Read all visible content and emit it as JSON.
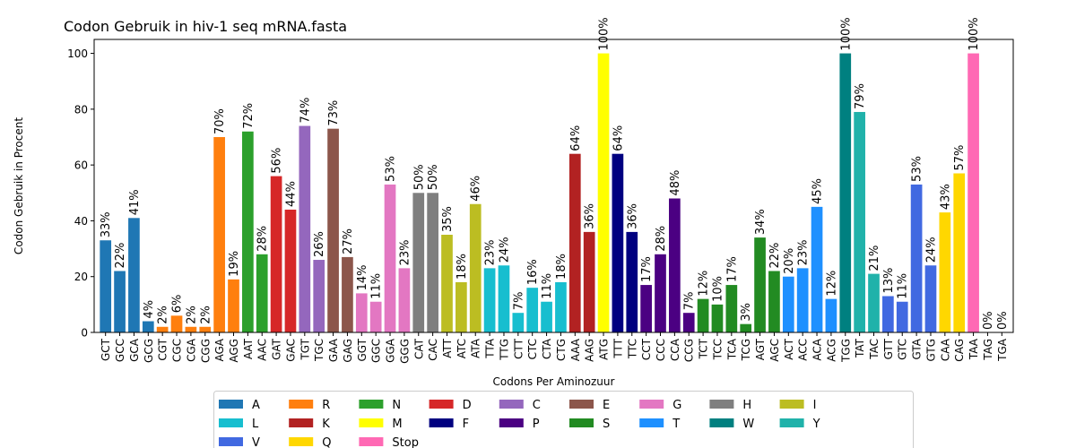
{
  "chart_data": {
    "type": "bar",
    "title": "Codon Gebruik in hiv-1 seq mRNA.fasta",
    "xlabel": "Codons Per Aminozuur",
    "ylabel": "Codon Gebruik in Procent",
    "ylim": [
      0,
      105
    ],
    "yticks": [
      0,
      20,
      40,
      60,
      80,
      100
    ],
    "grid": false,
    "legend_position": "bottom-center",
    "categories": [
      "GCT",
      "GCC",
      "GCA",
      "GCG",
      "CGT",
      "CGC",
      "CGA",
      "CGG",
      "AGA",
      "AGG",
      "AAT",
      "AAC",
      "GAT",
      "GAC",
      "TGT",
      "TGC",
      "GAA",
      "GAG",
      "GGT",
      "GGC",
      "GGA",
      "GGG",
      "CAT",
      "CAC",
      "ATT",
      "ATC",
      "ATA",
      "TTA",
      "TTG",
      "CTT",
      "CTC",
      "CTA",
      "CTG",
      "AAA",
      "AAG",
      "ATG",
      "TTT",
      "TTC",
      "CCT",
      "CCC",
      "CCA",
      "CCG",
      "TCT",
      "TCC",
      "TCA",
      "TCG",
      "AGT",
      "AGC",
      "ACT",
      "ACC",
      "ACA",
      "ACG",
      "TGG",
      "TAT",
      "TAC",
      "GTT",
      "GTC",
      "GTA",
      "GTG",
      "CAA",
      "CAG",
      "TAA",
      "TAG",
      "TGA"
    ],
    "values": [
      33,
      22,
      41,
      4,
      2,
      6,
      2,
      2,
      70,
      19,
      72,
      28,
      56,
      44,
      74,
      26,
      73,
      27,
      14,
      11,
      53,
      23,
      50,
      50,
      35,
      18,
      46,
      23,
      24,
      7,
      16,
      11,
      18,
      64,
      36,
      100,
      64,
      36,
      17,
      28,
      48,
      7,
      12,
      10,
      17,
      3,
      34,
      22,
      20,
      23,
      45,
      12,
      100,
      79,
      21,
      13,
      11,
      53,
      24,
      43,
      57,
      100,
      0,
      0
    ],
    "labels": [
      "33%",
      "22%",
      "41%",
      "4%",
      "2%",
      "6%",
      "2%",
      "2%",
      "70%",
      "19%",
      "72%",
      "28%",
      "56%",
      "44%",
      "74%",
      "26%",
      "73%",
      "27%",
      "14%",
      "11%",
      "53%",
      "23%",
      "50%",
      "50%",
      "35%",
      "18%",
      "46%",
      "23%",
      "24%",
      "7%",
      "16%",
      "11%",
      "18%",
      "64%",
      "36%",
      "100%",
      "64%",
      "36%",
      "17%",
      "28%",
      "48%",
      "7%",
      "12%",
      "10%",
      "17%",
      "3%",
      "34%",
      "22%",
      "20%",
      "23%",
      "45%",
      "12%",
      "100%",
      "79%",
      "21%",
      "13%",
      "11%",
      "53%",
      "24%",
      "43%",
      "57%",
      "100%",
      "0%",
      "0%"
    ],
    "amino_acid_of_codon": [
      "A",
      "A",
      "A",
      "A",
      "R",
      "R",
      "R",
      "R",
      "R",
      "R",
      "N",
      "N",
      "D",
      "D",
      "C",
      "C",
      "E",
      "E",
      "G",
      "G",
      "G",
      "G",
      "H",
      "H",
      "I",
      "I",
      "I",
      "L",
      "L",
      "L",
      "L",
      "L",
      "L",
      "K",
      "K",
      "M",
      "F",
      "F",
      "P",
      "P",
      "P",
      "P",
      "S",
      "S",
      "S",
      "S",
      "S",
      "S",
      "T",
      "T",
      "T",
      "T",
      "W",
      "Y",
      "Y",
      "V",
      "V",
      "V",
      "V",
      "Q",
      "Q",
      "Stop",
      "Stop",
      "Stop"
    ],
    "series": [
      {
        "name": "A",
        "color": "#1f77b4"
      },
      {
        "name": "R",
        "color": "#ff7f0e"
      },
      {
        "name": "N",
        "color": "#2ca02c"
      },
      {
        "name": "D",
        "color": "#d62728"
      },
      {
        "name": "C",
        "color": "#9467bd"
      },
      {
        "name": "E",
        "color": "#8c564b"
      },
      {
        "name": "G",
        "color": "#e377c2"
      },
      {
        "name": "H",
        "color": "#7f7f7f"
      },
      {
        "name": "I",
        "color": "#bcbd22"
      },
      {
        "name": "L",
        "color": "#17becf"
      },
      {
        "name": "K",
        "color": "#b22222"
      },
      {
        "name": "M",
        "color": "#ffff00"
      },
      {
        "name": "F",
        "color": "#000080"
      },
      {
        "name": "P",
        "color": "#4b0082"
      },
      {
        "name": "S",
        "color": "#228b22"
      },
      {
        "name": "T",
        "color": "#1e90ff"
      },
      {
        "name": "W",
        "color": "#008080"
      },
      {
        "name": "Y",
        "color": "#20b2aa"
      },
      {
        "name": "V",
        "color": "#4169e1"
      },
      {
        "name": "Q",
        "color": "#ffd700"
      },
      {
        "name": "Stop",
        "color": "#ff69b4"
      }
    ]
  }
}
